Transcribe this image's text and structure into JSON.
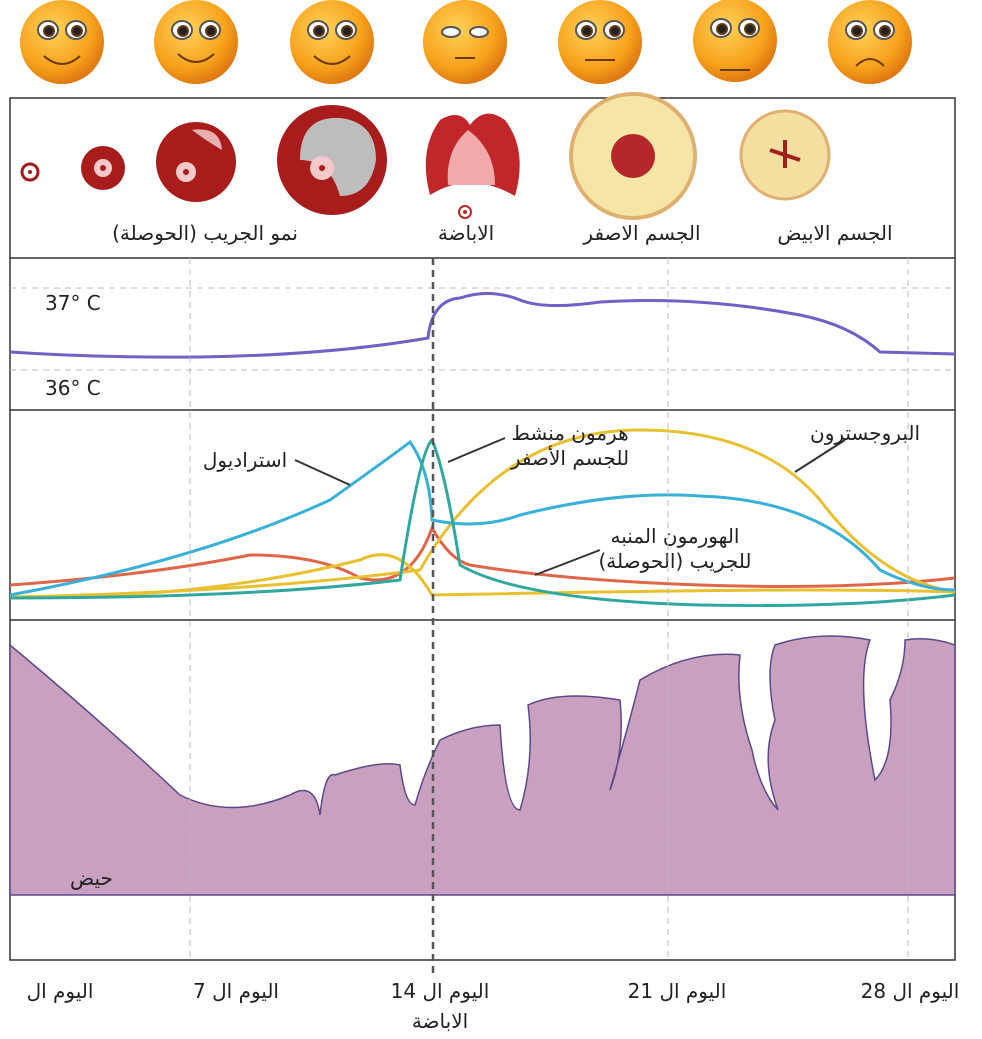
{
  "stages": {
    "follicle_growth": "نمو الجريب (الحوصلة)",
    "ovulation": "الاباضة",
    "corpus_luteum": "الجسم الاصفر",
    "corpus_albicans": "الجسم الابيض"
  },
  "temperature": {
    "high": "37° C",
    "low": "36° C"
  },
  "hormones": {
    "estradiol": "استراديول",
    "lh": [
      "هرمون منشط",
      "للجسم الأصفر"
    ],
    "progesterone": "البروجسترون",
    "fsh": [
      "الهورمون المنبه",
      "للجريب (الحوصلة)"
    ]
  },
  "endometrium": {
    "menses": "حيض"
  },
  "days": {
    "day1": "اليوم ال",
    "day7": "اليوم ال 7",
    "day14": "اليوم ال 14",
    "day14_note": "الاباضة",
    "day21": "اليوم ال 21",
    "day28": "اليوم ال 28"
  }
}
